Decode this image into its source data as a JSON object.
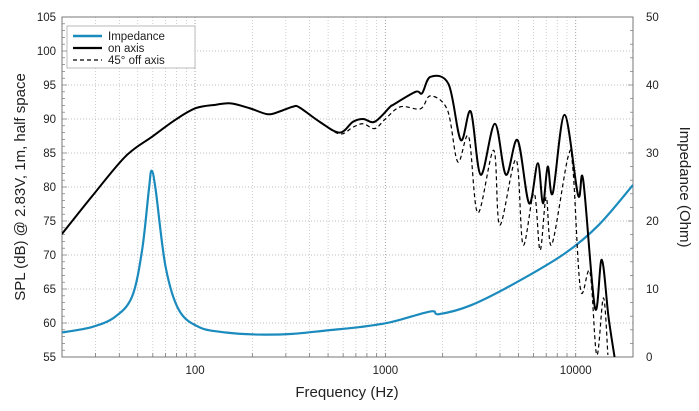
{
  "chart_data": {
    "type": "line",
    "xscale": "log",
    "xlabel": "Frequency (Hz)",
    "ylabel": "SPL (dB) @ 2.83V, 1m, half space",
    "y2label": "Impedance (Ohm)",
    "xlim": [
      20,
      20000
    ],
    "ylim": [
      55,
      105
    ],
    "y2lim": [
      0,
      50
    ],
    "xticks": [
      {
        "v": 100,
        "label": "100"
      },
      {
        "v": 1000,
        "label": "1000"
      },
      {
        "v": 10000,
        "label": "10000"
      }
    ],
    "yticks": [
      "55",
      "60",
      "65",
      "70",
      "75",
      "80",
      "85",
      "90",
      "95",
      "100",
      "105"
    ],
    "y2ticks": [
      "0",
      "10",
      "20",
      "30",
      "40",
      "50"
    ],
    "grid": true,
    "legend_position": "top-left",
    "colors": {
      "impedance": "#1b8bbd",
      "on_axis": "#000000",
      "off_axis": "#000000"
    },
    "series": [
      {
        "name": "Impedance",
        "axis": "right",
        "style": "solid",
        "color": "#1b8bbd",
        "x": [
          20,
          28.7,
          38,
          46.7,
          52.7,
          57.2,
          59.1,
          62.1,
          70,
          82.3,
          105,
          145,
          218,
          326,
          489,
          733,
          1060,
          1727,
          1910,
          2810,
          4760,
          8740,
          13200,
          20000
        ],
        "y": [
          3.6,
          4.4,
          5.9,
          8.9,
          15.7,
          24.6,
          27.4,
          24.6,
          13.3,
          6.9,
          4.4,
          3.6,
          3.3,
          3.4,
          3.9,
          4.4,
          5.1,
          6.7,
          6.3,
          7.6,
          10.8,
          15.2,
          19.4,
          25.3
        ]
      },
      {
        "name": "on axis",
        "axis": "left",
        "style": "solid",
        "color": "#000000",
        "x": [
          20,
          28.7,
          43.1,
          59.5,
          79,
          101,
          129,
          154,
          193,
          241,
          278,
          326,
          354,
          451,
          575,
          676,
          764,
          880,
          1060,
          1100,
          1440,
          1560,
          1727,
          2150,
          2490,
          2810,
          3170,
          3760,
          4300,
          4950,
          5690,
          6320,
          6730,
          7130,
          7580,
          8740,
          10290,
          10950,
          12630,
          13700,
          14870,
          16000
        ],
        "y": [
          73.1,
          78.6,
          84.5,
          87.4,
          89.9,
          91.6,
          92.1,
          92.3,
          91.6,
          90.7,
          91.1,
          91.8,
          91.7,
          89.6,
          88.0,
          89.6,
          90.0,
          89.6,
          91.8,
          92.1,
          94.0,
          93.8,
          96.2,
          95.1,
          86.9,
          91.1,
          81.8,
          89.3,
          81.8,
          86.9,
          77.6,
          83.5,
          77.6,
          83.0,
          79.1,
          90.6,
          78.8,
          81.0,
          62.2,
          69.3,
          60.9,
          55.0
        ]
      },
      {
        "name": "45° off axis",
        "axis": "left",
        "style": "dashed",
        "color": "#000000",
        "x": [
          20,
          28.7,
          43.1,
          59.5,
          79,
          101,
          129,
          154,
          193,
          241,
          278,
          326,
          354,
          451,
          575,
          676,
          764,
          880,
          1000,
          1200,
          1530,
          1727,
          2120,
          2400,
          2740,
          3060,
          3710,
          3990,
          4860,
          5290,
          6040,
          6500,
          7000,
          7480,
          9110,
          9680,
          10600,
          11880,
          12900,
          13990,
          14760
        ],
        "y": [
          73.1,
          78.6,
          84.5,
          87.4,
          89.9,
          91.6,
          92.1,
          92.3,
          91.6,
          90.7,
          91.1,
          91.8,
          91.7,
          89.6,
          87.8,
          88.8,
          89.3,
          88.6,
          90.0,
          91.8,
          91.5,
          93.4,
          91.3,
          83.7,
          87.4,
          76.2,
          85.4,
          74.4,
          84.0,
          71.5,
          79.1,
          70.7,
          78.5,
          71.5,
          84.4,
          82.5,
          64.9,
          67.5,
          55.3,
          63.7,
          55.3
        ]
      }
    ]
  }
}
